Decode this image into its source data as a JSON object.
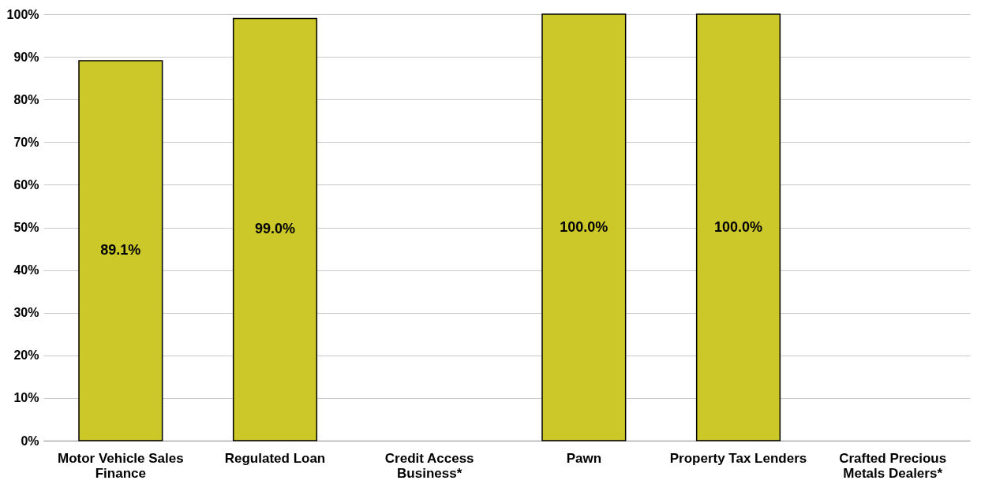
{
  "chart_data": {
    "type": "bar",
    "categories": [
      "Motor Vehicle Sales Finance",
      "Regulated Loan",
      "Credit Access Business*",
      "Pawn",
      "Property Tax Lenders",
      "Crafted Precious Metals Dealers*"
    ],
    "values": [
      89.1,
      99.0,
      null,
      100,
      100,
      null
    ],
    "value_labels": [
      "89.1%",
      "99.0%",
      null,
      "100.0%",
      "100.0%",
      null
    ],
    "color": "#cdc82a",
    "ylim": [
      0,
      100
    ],
    "yticks": [
      {
        "value": 0,
        "label": "0%"
      },
      {
        "value": 10,
        "label": "10%"
      },
      {
        "value": 20,
        "label": "20%"
      },
      {
        "value": 30,
        "label": "30%"
      },
      {
        "value": 40,
        "label": "40%"
      },
      {
        "value": 50,
        "label": "50%"
      },
      {
        "value": 60,
        "label": "60%"
      },
      {
        "value": 70,
        "label": "70%"
      },
      {
        "value": 80,
        "label": "80%"
      },
      {
        "value": 90,
        "label": "90%"
      },
      {
        "value": 100,
        "label": "100%"
      }
    ],
    "grid": "y"
  }
}
